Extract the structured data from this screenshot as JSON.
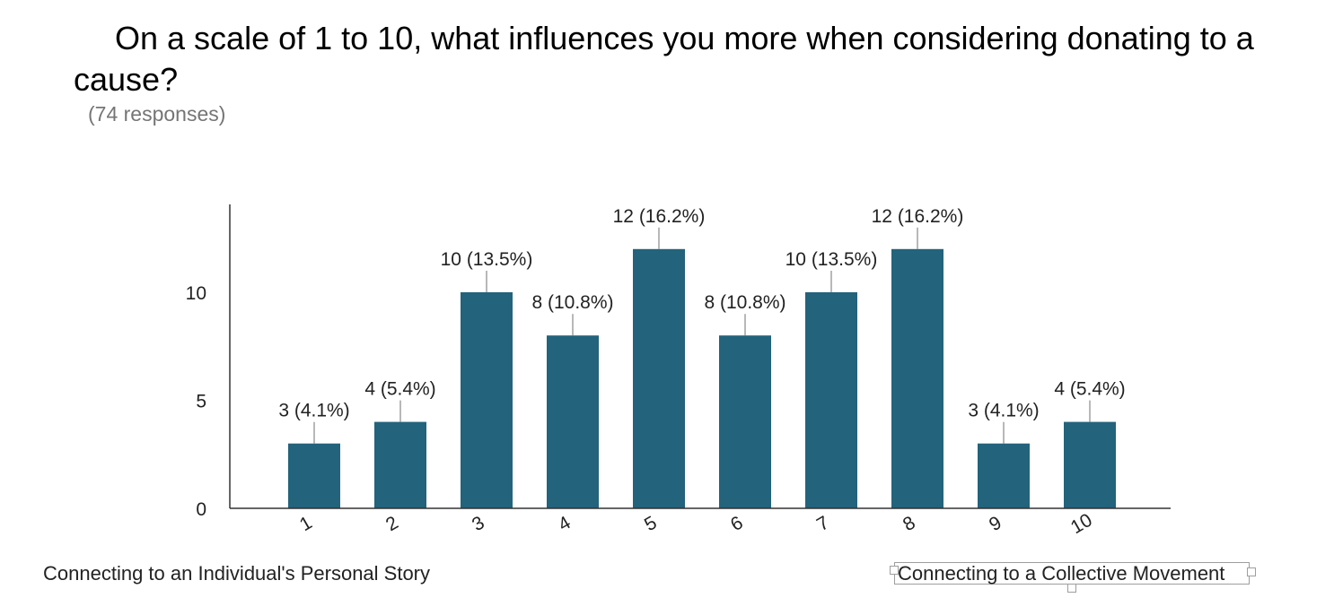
{
  "title": "On a scale of 1 to 10, what influences you more when considering donating to a cause?",
  "responses": "(74 responses)",
  "colors": {
    "bar": "#23637c",
    "axis": "#333333",
    "label_text": "#222222",
    "leader_line": "#888888"
  },
  "scale_labels": {
    "low": "Connecting to an Individual's Personal Story",
    "high": "Connecting to a Collective Movement"
  },
  "chart_data": {
    "type": "bar",
    "title": "On a scale of 1 to 10, what influences you more when considering donating to a cause?",
    "xlabel": "",
    "ylabel": "",
    "categories": [
      "1",
      "2",
      "3",
      "4",
      "5",
      "6",
      "7",
      "8",
      "9",
      "10"
    ],
    "values": [
      3,
      4,
      10,
      8,
      12,
      8,
      10,
      12,
      3,
      4
    ],
    "data_labels": [
      "3 (4.1%)",
      "4 (5.4%)",
      "10 (13.5%)",
      "8 (10.8%)",
      "12 (16.2%)",
      "8 (10.8%)",
      "10 (13.5%)",
      "12 (16.2%)",
      "3 (4.1%)",
      "4 (5.4%)"
    ],
    "y_ticks": [
      0,
      5,
      10
    ],
    "ylim": [
      0,
      14
    ],
    "grid": false,
    "legend": "none"
  }
}
